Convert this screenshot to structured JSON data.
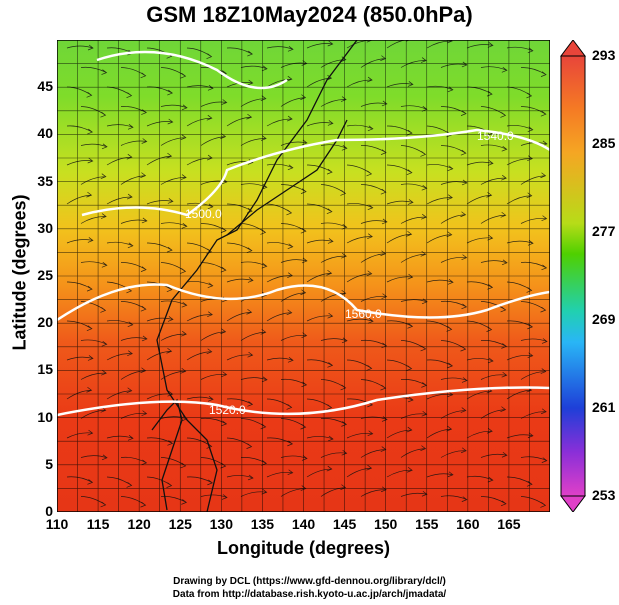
{
  "title": "GSM 18Z10May2024 (850.0hPa)",
  "x_axis": {
    "label": "Longitude (degrees)",
    "ticks": [
      "110",
      "115",
      "120",
      "125",
      "130",
      "135",
      "140",
      "145",
      "150",
      "155",
      "160",
      "165"
    ],
    "range": [
      110,
      170
    ]
  },
  "y_axis": {
    "label": "Latitude  (degrees)",
    "ticks": [
      "0",
      "5",
      "10",
      "15",
      "20",
      "25",
      "30",
      "35",
      "40",
      "45"
    ],
    "range": [
      0,
      50
    ]
  },
  "colorbar": {
    "ticks": [
      "293",
      "285",
      "277",
      "269",
      "261",
      "253"
    ],
    "range": [
      253,
      293
    ],
    "colors": {
      "top": "#e8453a",
      "orange": "#f5a623",
      "green": "#4fd000",
      "cyan": "#29b6f6",
      "blue": "#1e3fd8",
      "bottom": "#e040c8"
    }
  },
  "contour_labels": [
    "1560.0",
    "1520.0",
    "1540.0",
    "1500.0"
  ],
  "credits": {
    "line1": "Drawing by DCL (https://www.gfd-dennou.org/library/dcl/)",
    "line2": "Data from http://database.rish.kyoto-u.ac.jp/arch/jmadata/"
  }
}
